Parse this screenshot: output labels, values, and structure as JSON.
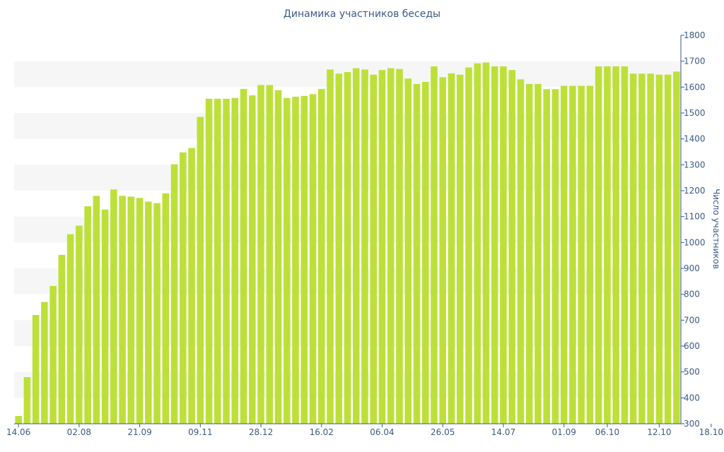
{
  "chart_data": {
    "type": "bar",
    "title": "Динамика участников беседы",
    "ylabel": "Число участников",
    "ylim": [
      300,
      1800
    ],
    "yticks": [
      300,
      400,
      500,
      600,
      700,
      800,
      900,
      1000,
      1100,
      1200,
      1300,
      1400,
      1500,
      1600,
      1700,
      1800
    ],
    "xtick_labels": [
      {
        "label": "14.06",
        "index": 0
      },
      {
        "label": "02.08",
        "index": 7
      },
      {
        "label": "21.09",
        "index": 14
      },
      {
        "label": "09.11",
        "index": 21
      },
      {
        "label": "28.12",
        "index": 28
      },
      {
        "label": "16.02",
        "index": 35
      },
      {
        "label": "06.04",
        "index": 42
      },
      {
        "label": "26.05",
        "index": 49
      },
      {
        "label": "14.07",
        "index": 56
      },
      {
        "label": "01.09",
        "index": 63
      },
      {
        "label": "06.10",
        "index": 68
      },
      {
        "label": "12.10",
        "index": 74
      },
      {
        "label": "18.10",
        "index": 80
      }
    ],
    "values": [
      330,
      480,
      720,
      770,
      832,
      952,
      1032,
      1065,
      1140,
      1180,
      1127,
      1205,
      1180,
      1177,
      1172,
      1158,
      1152,
      1190,
      1302,
      1348,
      1365,
      1485,
      1555,
      1555,
      1555,
      1558,
      1593,
      1568,
      1608,
      1608,
      1588,
      1558,
      1563,
      1566,
      1573,
      1593,
      1668,
      1652,
      1658,
      1673,
      1668,
      1648,
      1666,
      1673,
      1670,
      1633,
      1612,
      1620,
      1680,
      1638,
      1653,
      1648,
      1676,
      1692,
      1695,
      1680,
      1680,
      1666,
      1630,
      1612,
      1612,
      1592,
      1592,
      1605,
      1605,
      1605,
      1605,
      1680,
      1680,
      1680,
      1680,
      1652,
      1652,
      1652,
      1648,
      1648,
      1660
    ],
    "bar_color": "#bde038",
    "band_color": "#f6f6f6",
    "text_color": "#3b5a86",
    "axis_color": "#3b5a86",
    "grid": "alternating bands",
    "legend": "none"
  }
}
